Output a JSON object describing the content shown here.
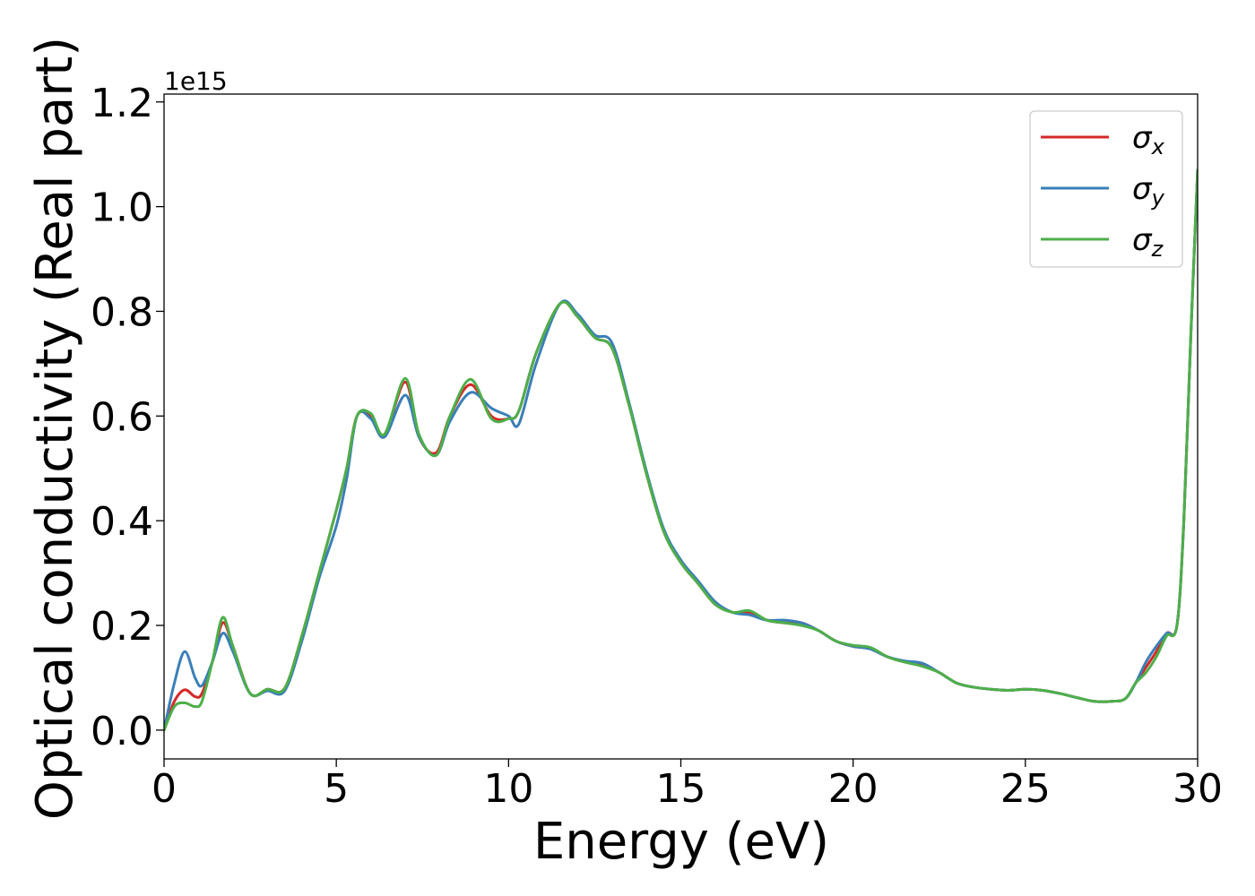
{
  "chart_data": {
    "type": "line",
    "title": "",
    "xlabel": "Energy (eV)",
    "ylabel": "Optical conductivity (Real part)",
    "y_offset_label": "1e15",
    "xlim": [
      0,
      30
    ],
    "ylim": [
      -0.055,
      1.215
    ],
    "xticks": [
      0,
      5,
      10,
      15,
      20,
      25,
      30
    ],
    "yticks": [
      0.0,
      0.2,
      0.4,
      0.6,
      0.8,
      1.0,
      1.2
    ],
    "xtick_labels": [
      "0",
      "5",
      "10",
      "15",
      "20",
      "25",
      "30"
    ],
    "ytick_labels": [
      "0.0",
      "0.2",
      "0.4",
      "0.6",
      "0.8",
      "1.0",
      "1.2"
    ],
    "grid": false,
    "legend_position": "top-right",
    "series": [
      {
        "symbol": "σ",
        "subscript": "x",
        "color": "#d62728",
        "x": [
          0,
          0.3,
          0.6,
          0.9,
          1.1,
          1.4,
          1.7,
          2.0,
          2.5,
          3.0,
          3.5,
          4.0,
          4.5,
          5.0,
          5.3,
          5.6,
          6.0,
          6.4,
          7.0,
          7.4,
          7.9,
          8.3,
          8.9,
          9.5,
          10.0,
          10.3,
          10.8,
          11.5,
          12.0,
          12.5,
          13.0,
          13.5,
          14.0,
          14.5,
          15.0,
          15.5,
          16.0,
          16.5,
          17.0,
          17.5,
          18.0,
          18.5,
          19.0,
          19.5,
          20.0,
          20.5,
          21.0,
          21.5,
          22.0,
          22.5,
          23.0,
          23.5,
          24.0,
          24.5,
          25.0,
          25.5,
          26.0,
          26.5,
          27.0,
          27.5,
          27.9,
          28.2,
          28.5,
          28.8,
          29.1,
          29.4,
          29.6,
          29.8,
          30.0
        ],
        "values": [
          0.0,
          0.055,
          0.077,
          0.064,
          0.07,
          0.13,
          0.205,
          0.16,
          0.07,
          0.078,
          0.08,
          0.18,
          0.3,
          0.42,
          0.5,
          0.6,
          0.6,
          0.565,
          0.665,
          0.56,
          0.53,
          0.6,
          0.66,
          0.6,
          0.595,
          0.61,
          0.72,
          0.815,
          0.79,
          0.75,
          0.73,
          0.62,
          0.49,
          0.38,
          0.32,
          0.28,
          0.24,
          0.225,
          0.225,
          0.21,
          0.205,
          0.205,
          0.19,
          0.17,
          0.16,
          0.155,
          0.14,
          0.13,
          0.125,
          0.11,
          0.09,
          0.082,
          0.078,
          0.076,
          0.078,
          0.076,
          0.07,
          0.062,
          0.055,
          0.055,
          0.06,
          0.09,
          0.12,
          0.15,
          0.185,
          0.2,
          0.4,
          0.75,
          1.07
        ]
      },
      {
        "symbol": "σ",
        "subscript": "y",
        "color": "#3a7fb8",
        "x": [
          0,
          0.3,
          0.6,
          0.9,
          1.1,
          1.4,
          1.7,
          2.0,
          2.5,
          3.0,
          3.5,
          4.0,
          4.5,
          5.0,
          5.3,
          5.6,
          6.0,
          6.4,
          7.0,
          7.4,
          7.9,
          8.3,
          8.9,
          9.5,
          10.0,
          10.3,
          10.8,
          11.5,
          12.0,
          12.5,
          13.0,
          13.5,
          14.0,
          14.5,
          15.0,
          15.5,
          16.0,
          16.5,
          17.0,
          17.5,
          18.0,
          18.5,
          19.0,
          19.5,
          20.0,
          20.5,
          21.0,
          21.5,
          22.0,
          22.5,
          23.0,
          23.5,
          24.0,
          24.5,
          25.0,
          25.5,
          26.0,
          26.5,
          27.0,
          27.5,
          27.9,
          28.2,
          28.5,
          28.8,
          29.1,
          29.4,
          29.6,
          29.8,
          30.0
        ],
        "values": [
          0.0,
          0.09,
          0.15,
          0.1,
          0.085,
          0.13,
          0.185,
          0.15,
          0.07,
          0.075,
          0.075,
          0.17,
          0.29,
          0.39,
          0.48,
          0.6,
          0.595,
          0.56,
          0.64,
          0.56,
          0.525,
          0.59,
          0.645,
          0.615,
          0.6,
          0.585,
          0.7,
          0.815,
          0.795,
          0.755,
          0.74,
          0.625,
          0.495,
          0.385,
          0.325,
          0.285,
          0.245,
          0.225,
          0.22,
          0.21,
          0.21,
          0.205,
          0.19,
          0.17,
          0.16,
          0.155,
          0.14,
          0.132,
          0.128,
          0.11,
          0.09,
          0.082,
          0.078,
          0.076,
          0.078,
          0.076,
          0.07,
          0.062,
          0.055,
          0.055,
          0.06,
          0.09,
          0.13,
          0.16,
          0.185,
          0.2,
          0.4,
          0.75,
          1.07
        ]
      },
      {
        "symbol": "σ",
        "subscript": "z",
        "color": "#4daf4a",
        "x": [
          0,
          0.3,
          0.6,
          0.9,
          1.1,
          1.4,
          1.7,
          2.0,
          2.5,
          3.0,
          3.5,
          4.0,
          4.5,
          5.0,
          5.3,
          5.6,
          6.0,
          6.4,
          7.0,
          7.4,
          7.9,
          8.3,
          8.9,
          9.5,
          10.0,
          10.3,
          10.8,
          11.5,
          12.0,
          12.5,
          13.0,
          13.5,
          14.0,
          14.5,
          15.0,
          15.5,
          16.0,
          16.5,
          17.0,
          17.5,
          18.0,
          18.5,
          19.0,
          19.5,
          20.0,
          20.5,
          21.0,
          21.5,
          22.0,
          22.5,
          23.0,
          23.5,
          24.0,
          24.5,
          25.0,
          25.5,
          26.0,
          26.5,
          27.0,
          27.5,
          27.9,
          28.2,
          28.5,
          28.8,
          29.1,
          29.4,
          29.6,
          29.8,
          30.0
        ],
        "values": [
          0.0,
          0.045,
          0.052,
          0.045,
          0.055,
          0.13,
          0.215,
          0.16,
          0.07,
          0.078,
          0.08,
          0.18,
          0.3,
          0.42,
          0.5,
          0.6,
          0.605,
          0.565,
          0.672,
          0.565,
          0.525,
          0.6,
          0.67,
          0.595,
          0.595,
          0.61,
          0.72,
          0.815,
          0.79,
          0.75,
          0.73,
          0.62,
          0.49,
          0.38,
          0.32,
          0.28,
          0.24,
          0.225,
          0.228,
          0.21,
          0.205,
          0.2,
          0.19,
          0.17,
          0.162,
          0.158,
          0.14,
          0.13,
          0.122,
          0.11,
          0.09,
          0.082,
          0.078,
          0.076,
          0.078,
          0.076,
          0.07,
          0.062,
          0.055,
          0.055,
          0.06,
          0.09,
          0.11,
          0.14,
          0.18,
          0.2,
          0.4,
          0.75,
          1.07
        ]
      }
    ]
  }
}
